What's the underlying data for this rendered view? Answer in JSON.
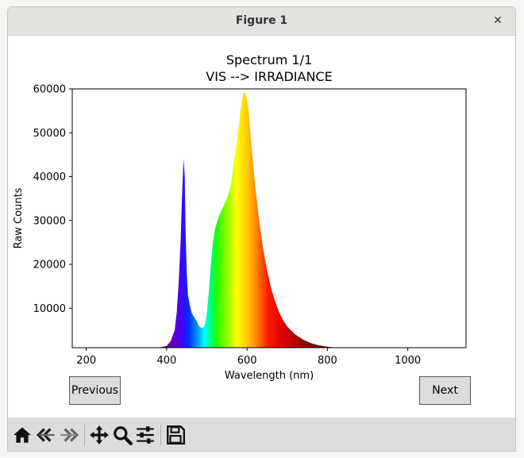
{
  "window": {
    "title": "Figure 1",
    "close_glyph": "✕"
  },
  "buttons": {
    "previous": "Previous",
    "next": "Next"
  },
  "toolbar": {
    "icons": [
      "home-icon",
      "back-icon",
      "forward-icon",
      "pan-icon",
      "zoom-icon",
      "configure-subplots-icon",
      "save-icon"
    ]
  },
  "chart_data": {
    "type": "area",
    "title": "Spectrum 1/1",
    "subtitle": "VIS --> IRRADIANCE",
    "xlabel": "Wavelength (nm)",
    "ylabel": "Raw Counts",
    "xlim": [
      165,
      1145
    ],
    "ylim": [
      1000,
      60000
    ],
    "xticks": [
      200,
      400,
      600,
      800,
      1000
    ],
    "yticks": [
      10000,
      20000,
      30000,
      40000,
      50000,
      60000
    ],
    "fill": "wavelength-colored spectrum",
    "x": [
      165,
      380,
      400,
      410,
      420,
      425,
      430,
      435,
      438,
      442,
      445,
      447,
      450,
      453,
      457,
      462,
      468,
      475,
      480,
      485,
      490,
      495,
      500,
      505,
      510,
      515,
      520,
      525,
      530,
      540,
      550,
      560,
      570,
      575,
      580,
      585,
      590,
      593,
      596,
      600,
      605,
      610,
      620,
      630,
      640,
      650,
      660,
      670,
      680,
      690,
      700,
      720,
      740,
      760,
      780,
      800,
      820,
      850,
      900,
      1145
    ],
    "y": [
      1000,
      1000,
      1400,
      2500,
      5000,
      9000,
      16000,
      26000,
      35000,
      44000,
      40000,
      28000,
      18000,
      13000,
      11000,
      9000,
      8000,
      7000,
      6000,
      5600,
      5500,
      6200,
      9000,
      14000,
      20000,
      25000,
      28000,
      29500,
      31000,
      33000,
      35000,
      38000,
      45000,
      48000,
      52000,
      56000,
      58500,
      59200,
      58800,
      57500,
      54000,
      48000,
      38000,
      30000,
      23500,
      18500,
      14500,
      11500,
      9000,
      7200,
      5800,
      4000,
      2800,
      2000,
      1500,
      1200,
      1050,
      1000,
      1000,
      1000
    ]
  }
}
